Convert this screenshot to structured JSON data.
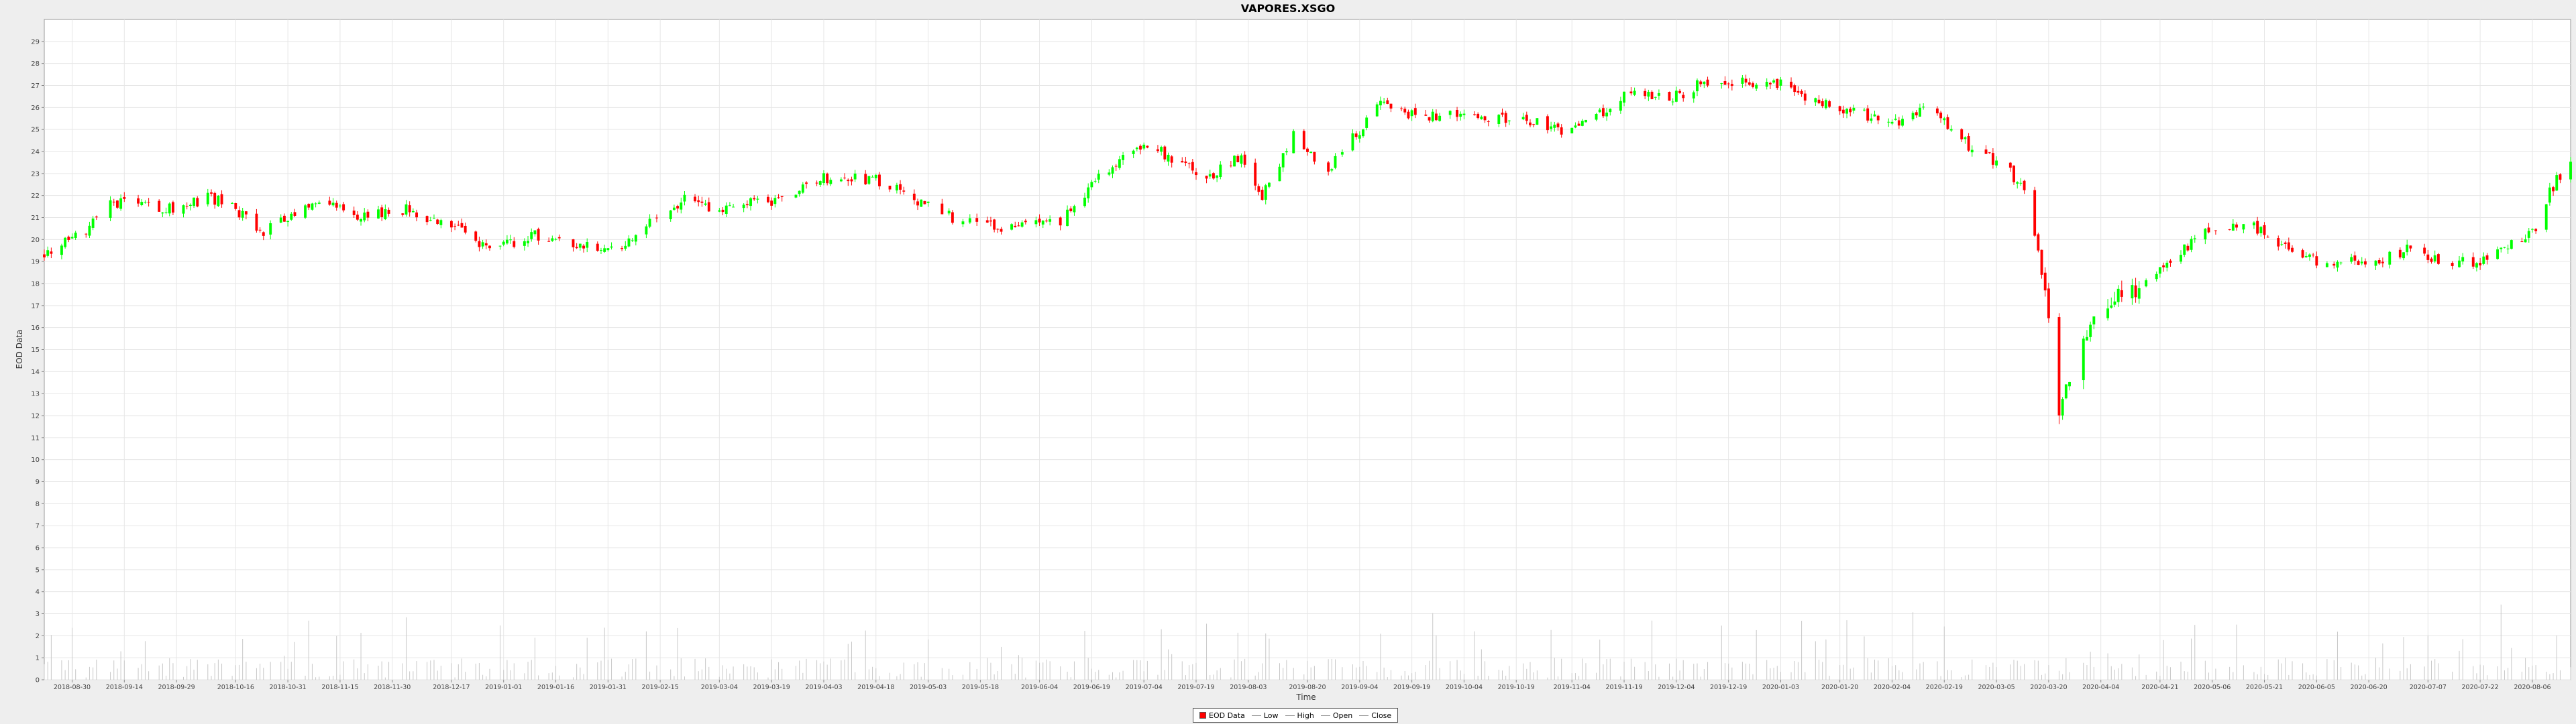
{
  "chart_data": {
    "type": "candlestick",
    "title": "VAPORES.XSGO",
    "xlabel": "Time",
    "ylabel": "EOD Data",
    "ylim": [
      0,
      30
    ],
    "y_ticks": [
      0,
      1,
      2,
      3,
      4,
      5,
      6,
      7,
      8,
      9,
      10,
      11,
      12,
      13,
      14,
      15,
      16,
      17,
      18,
      19,
      20,
      21,
      22,
      23,
      24,
      25,
      26,
      27,
      28,
      29
    ],
    "x_ticks": [
      "2018-08-30",
      "2018-09-14",
      "2018-09-29",
      "2018-10-16",
      "2018-10-31",
      "2018-11-15",
      "2018-11-30",
      "2018-12-17",
      "2019-01-01",
      "2019-01-16",
      "2019-01-31",
      "2019-02-15",
      "2019-03-04",
      "2019-03-19",
      "2019-04-03",
      "2019-04-18",
      "2019-05-03",
      "2019-05-18",
      "2019-06-04",
      "2019-06-19",
      "2019-07-04",
      "2019-07-19",
      "2019-08-03",
      "2019-08-20",
      "2019-09-04",
      "2019-09-19",
      "2019-10-04",
      "2019-10-19",
      "2019-11-04",
      "2019-11-19",
      "2019-12-04",
      "2019-12-19",
      "2020-01-03",
      "2020-01-20",
      "2020-02-04",
      "2020-02-19",
      "2020-03-05",
      "2020-03-20",
      "2020-04-04",
      "2020-04-21",
      "2020-05-06",
      "2020-05-21",
      "2020-06-05",
      "2020-06-20",
      "2020-07-07",
      "2020-07-22",
      "2020-08-06"
    ],
    "grid": true,
    "legend": {
      "placement": "bottom-center",
      "entries": [
        "EOD Data",
        "Low",
        "High",
        "Open",
        "Close"
      ]
    },
    "colors": {
      "up": "#00ff00",
      "down": "#ff0000",
      "volume": "#c8c8c8",
      "grid": "#e6e6e6",
      "plot_bg": "#ffffff"
    },
    "anchor_closes": [
      [
        "2018-08-22",
        19.3
      ],
      [
        "2018-09-03",
        20.5
      ],
      [
        "2018-09-10",
        21.7
      ],
      [
        "2018-09-20",
        21.6
      ],
      [
        "2018-09-29",
        21.3
      ],
      [
        "2018-10-08",
        22.0
      ],
      [
        "2018-10-16",
        21.4
      ],
      [
        "2018-10-24",
        20.3
      ],
      [
        "2018-10-31",
        20.9
      ],
      [
        "2018-11-08",
        21.8
      ],
      [
        "2018-11-22",
        21.0
      ],
      [
        "2018-12-01",
        21.5
      ],
      [
        "2018-12-17",
        20.6
      ],
      [
        "2018-12-27",
        19.5
      ],
      [
        "2019-01-10",
        20.2
      ],
      [
        "2019-01-24",
        19.8
      ],
      [
        "2019-02-04",
        19.7
      ],
      [
        "2019-02-14",
        21.2
      ],
      [
        "2019-02-22",
        21.8
      ],
      [
        "2019-03-04",
        21.4
      ],
      [
        "2019-03-19",
        21.8
      ],
      [
        "2019-04-03",
        22.8
      ],
      [
        "2019-04-18",
        22.7
      ],
      [
        "2019-05-03",
        21.5
      ],
      [
        "2019-05-18",
        20.5
      ],
      [
        "2019-06-01",
        20.7
      ],
      [
        "2019-06-10",
        20.8
      ],
      [
        "2019-06-19",
        22.5
      ],
      [
        "2019-07-04",
        24.5
      ],
      [
        "2019-07-13",
        23.6
      ],
      [
        "2019-07-22",
        22.8
      ],
      [
        "2019-08-01",
        23.9
      ],
      [
        "2019-08-07",
        21.9
      ],
      [
        "2019-08-16",
        24.8
      ],
      [
        "2019-08-26",
        23.1
      ],
      [
        "2019-09-04",
        25.0
      ],
      [
        "2019-09-10",
        26.1
      ],
      [
        "2019-09-19",
        25.7
      ],
      [
        "2019-10-04",
        25.6
      ],
      [
        "2019-10-19",
        25.5
      ],
      [
        "2019-11-04",
        24.8
      ],
      [
        "2019-11-19",
        26.5
      ],
      [
        "2019-12-04",
        26.5
      ],
      [
        "2019-12-14",
        27.3
      ],
      [
        "2019-12-26",
        27.1
      ],
      [
        "2020-01-05",
        27.0
      ],
      [
        "2020-01-09",
        26.4
      ],
      [
        "2020-01-20",
        26.0
      ],
      [
        "2020-02-04",
        25.3
      ],
      [
        "2020-02-14",
        25.9
      ],
      [
        "2020-02-26",
        24.3
      ],
      [
        "2020-03-08",
        23.2
      ],
      [
        "2020-03-14",
        22.0
      ],
      [
        "2020-03-19",
        17.5
      ],
      [
        "2020-03-23",
        12.4
      ],
      [
        "2020-04-01",
        16.5
      ],
      [
        "2020-04-08",
        17.2
      ],
      [
        "2020-04-21",
        18.6
      ],
      [
        "2020-05-06",
        20.6
      ],
      [
        "2020-05-15",
        20.8
      ],
      [
        "2020-05-28",
        19.5
      ],
      [
        "2020-06-05",
        19.0
      ],
      [
        "2020-06-13",
        19.0
      ],
      [
        "2020-06-20",
        18.8
      ],
      [
        "2020-07-02",
        19.6
      ],
      [
        "2020-07-13",
        18.9
      ],
      [
        "2020-07-22",
        19.0
      ],
      [
        "2020-08-06",
        20.3
      ],
      [
        "2020-08-13",
        22.8
      ],
      [
        "2020-08-16",
        23.3
      ]
    ],
    "x_range": [
      "2018-08-22",
      "2020-08-17"
    ]
  }
}
